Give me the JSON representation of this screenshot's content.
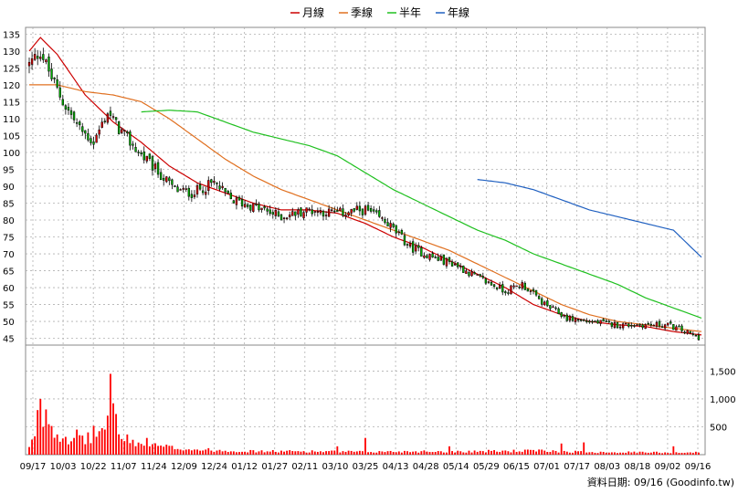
{
  "chart_data": {
    "type": "candlestick",
    "legend": [
      {
        "name": "月線",
        "color": "#cc0000"
      },
      {
        "name": "季線",
        "color": "#e07020"
      },
      {
        "name": "半年",
        "color": "#20c020"
      },
      {
        "name": "年線",
        "color": "#2060c0"
      }
    ],
    "x_tick_labels": [
      "09/17",
      "10/03",
      "10/22",
      "11/07",
      "11/24",
      "12/09",
      "12/24",
      "01/12",
      "01/27",
      "02/11",
      "03/10",
      "03/25",
      "04/13",
      "04/28",
      "05/14",
      "05/29",
      "06/15",
      "07/01",
      "07/17",
      "08/03",
      "08/18",
      "09/02",
      "09/16"
    ],
    "price_axis": {
      "ticks": [
        45,
        50,
        55,
        60,
        65,
        70,
        75,
        80,
        85,
        90,
        95,
        100,
        105,
        110,
        115,
        120,
        125,
        130,
        135
      ],
      "min": 43,
      "max": 137
    },
    "volume_axis": {
      "ticks": [
        500,
        1000,
        1500
      ],
      "tick_labels": [
        "500",
        "1,000",
        "1,500"
      ],
      "min": 0,
      "max": 1900
    },
    "n_days": 240,
    "close_anchors": [
      [
        0,
        126
      ],
      [
        4,
        130
      ],
      [
        8,
        122
      ],
      [
        12,
        115
      ],
      [
        18,
        107
      ],
      [
        23,
        103
      ],
      [
        28,
        112
      ],
      [
        32,
        107
      ],
      [
        38,
        101
      ],
      [
        45,
        95
      ],
      [
        52,
        89
      ],
      [
        58,
        88
      ],
      [
        66,
        91
      ],
      [
        72,
        86
      ],
      [
        80,
        84
      ],
      [
        90,
        81
      ],
      [
        100,
        83
      ],
      [
        110,
        82
      ],
      [
        120,
        83
      ],
      [
        128,
        79
      ],
      [
        136,
        72
      ],
      [
        144,
        69
      ],
      [
        152,
        67
      ],
      [
        160,
        63
      ],
      [
        170,
        59
      ],
      [
        176,
        61
      ],
      [
        184,
        55
      ],
      [
        192,
        51
      ],
      [
        200,
        50
      ],
      [
        210,
        49
      ],
      [
        220,
        49
      ],
      [
        228,
        49
      ],
      [
        234,
        47
      ],
      [
        240,
        45
      ]
    ],
    "ma_month": [
      [
        0,
        130
      ],
      [
        4,
        134
      ],
      [
        10,
        129
      ],
      [
        20,
        117
      ],
      [
        30,
        109
      ],
      [
        40,
        103
      ],
      [
        50,
        96
      ],
      [
        60,
        91
      ],
      [
        70,
        88
      ],
      [
        80,
        85
      ],
      [
        90,
        83
      ],
      [
        100,
        83
      ],
      [
        110,
        82
      ],
      [
        120,
        79
      ],
      [
        130,
        75
      ],
      [
        140,
        72
      ],
      [
        150,
        68
      ],
      [
        160,
        64
      ],
      [
        170,
        60
      ],
      [
        180,
        55
      ],
      [
        190,
        52
      ],
      [
        200,
        50
      ],
      [
        210,
        49
      ],
      [
        220,
        48.5
      ],
      [
        230,
        47
      ],
      [
        240,
        46
      ]
    ],
    "ma_quarter": [
      [
        0,
        120
      ],
      [
        10,
        120
      ],
      [
        20,
        118
      ],
      [
        30,
        117
      ],
      [
        40,
        115
      ],
      [
        50,
        110
      ],
      [
        60,
        104
      ],
      [
        70,
        98
      ],
      [
        80,
        93
      ],
      [
        90,
        89
      ],
      [
        100,
        86
      ],
      [
        110,
        83
      ],
      [
        120,
        80
      ],
      [
        130,
        77
      ],
      [
        140,
        74
      ],
      [
        150,
        71
      ],
      [
        160,
        67
      ],
      [
        170,
        63
      ],
      [
        180,
        59
      ],
      [
        190,
        55
      ],
      [
        200,
        52
      ],
      [
        210,
        50
      ],
      [
        220,
        49
      ],
      [
        240,
        47
      ]
    ],
    "ma_halfyear": [
      [
        40,
        112
      ],
      [
        50,
        112.5
      ],
      [
        60,
        112
      ],
      [
        70,
        109
      ],
      [
        80,
        106
      ],
      [
        90,
        104
      ],
      [
        100,
        102
      ],
      [
        110,
        99
      ],
      [
        120,
        94
      ],
      [
        130,
        89
      ],
      [
        140,
        85
      ],
      [
        150,
        81
      ],
      [
        160,
        77
      ],
      [
        170,
        74
      ],
      [
        180,
        70
      ],
      [
        190,
        67
      ],
      [
        200,
        64
      ],
      [
        210,
        61
      ],
      [
        220,
        57
      ],
      [
        230,
        54
      ],
      [
        240,
        51
      ]
    ],
    "ma_year": [
      [
        160,
        92
      ],
      [
        170,
        91
      ],
      [
        180,
        89
      ],
      [
        190,
        86
      ],
      [
        200,
        83
      ],
      [
        210,
        81
      ],
      [
        220,
        79
      ],
      [
        230,
        77
      ],
      [
        240,
        69
      ]
    ],
    "volume_profile": [
      [
        0,
        120
      ],
      [
        4,
        500
      ],
      [
        6,
        900
      ],
      [
        8,
        500
      ],
      [
        10,
        400
      ],
      [
        14,
        300
      ],
      [
        18,
        250
      ],
      [
        20,
        280
      ],
      [
        24,
        400
      ],
      [
        28,
        500
      ],
      [
        30,
        1300
      ],
      [
        32,
        300
      ],
      [
        36,
        250
      ],
      [
        40,
        180
      ],
      [
        50,
        130
      ],
      [
        60,
        90
      ],
      [
        80,
        60
      ],
      [
        100,
        60
      ],
      [
        120,
        50
      ],
      [
        140,
        60
      ],
      [
        160,
        60
      ],
      [
        180,
        70
      ],
      [
        200,
        50
      ],
      [
        220,
        40
      ],
      [
        240,
        40
      ]
    ],
    "volume_spikes": [
      [
        3,
        800
      ],
      [
        4,
        1000
      ],
      [
        5,
        500
      ],
      [
        16,
        300
      ],
      [
        17,
        450
      ],
      [
        27,
        450
      ],
      [
        28,
        700
      ],
      [
        29,
        1450
      ],
      [
        42,
        300
      ],
      [
        110,
        150
      ],
      [
        120,
        300
      ],
      [
        150,
        150
      ],
      [
        190,
        200
      ],
      [
        198,
        220
      ],
      [
        230,
        150
      ]
    ]
  },
  "footer": {
    "label": "資料日期: 09/16 (Goodinfo.tw)"
  }
}
